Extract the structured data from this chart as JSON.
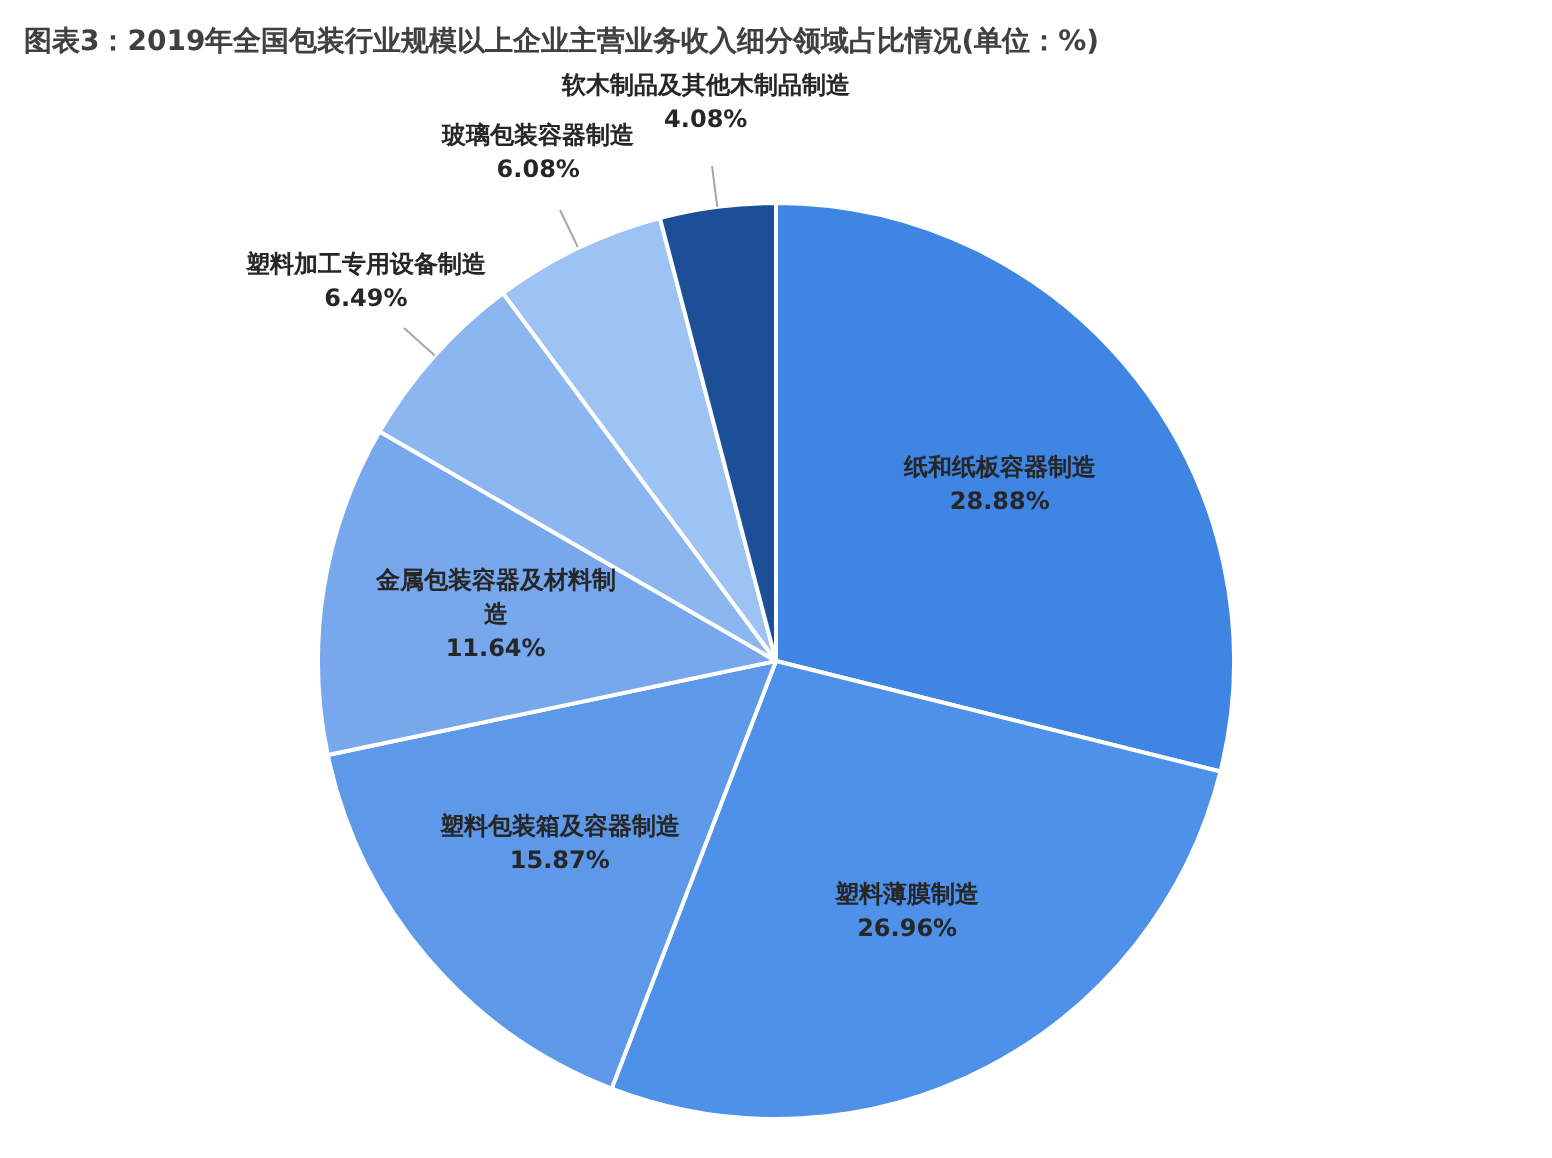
{
  "chart_data": {
    "type": "pie",
    "title": "图表3：2019年全国包装行业规模以上企业主营业务收入细分领域占比情况(单位：%)",
    "categories": [
      "纸和纸板容器制造",
      "塑料薄膜制造",
      "塑料包装箱及容器制造",
      "金属包装容器及材料制造",
      "塑料加工专用设备制造",
      "玻璃包装容器制造",
      "软木制品及其他木制品制造"
    ],
    "values": [
      28.88,
      26.96,
      15.87,
      11.64,
      6.49,
      6.08,
      4.08
    ],
    "value_labels": [
      "28.88%",
      "26.96%",
      "15.87%",
      "11.64%",
      "6.49%",
      "6.08%",
      "4.08%"
    ],
    "colors": [
      "#3f86e4",
      "#4f90e8",
      "#5e98e8",
      "#77a8ee",
      "#8cb6f0",
      "#9dc2f4",
      "#1c4f98"
    ],
    "legend": false
  }
}
